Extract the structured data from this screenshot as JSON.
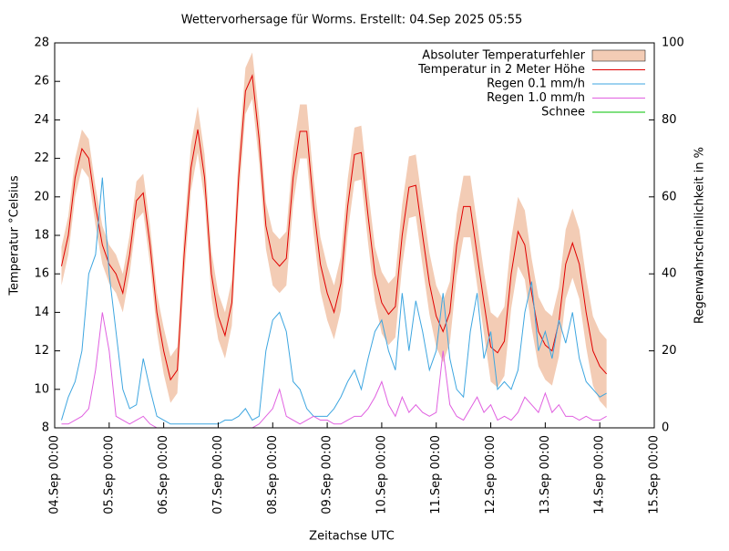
{
  "chart_data": {
    "type": "line",
    "title": "Wettervorhersage für Worms. Erstellt: 04.Sep 2025 05:55",
    "x_label": "Zeitachse UTC",
    "y_label": "Temperatur °Celsius",
    "y2_label": "Regenwahrscheinlichkeit in %",
    "legend": "top-right",
    "x": [
      "04.Sep 03:00",
      "04.Sep 06:00",
      "04.Sep 09:00",
      "04.Sep 12:00",
      "04.Sep 15:00",
      "04.Sep 18:00",
      "04.Sep 21:00",
      "05.Sep 00:00",
      "05.Sep 03:00",
      "05.Sep 06:00",
      "05.Sep 09:00",
      "05.Sep 12:00",
      "05.Sep 15:00",
      "05.Sep 18:00",
      "05.Sep 21:00",
      "06.Sep 00:00",
      "06.Sep 03:00",
      "06.Sep 06:00",
      "06.Sep 09:00",
      "06.Sep 12:00",
      "06.Sep 15:00",
      "06.Sep 18:00",
      "06.Sep 21:00",
      "07.Sep 00:00",
      "07.Sep 03:00",
      "07.Sep 06:00",
      "07.Sep 09:00",
      "07.Sep 12:00",
      "07.Sep 15:00",
      "07.Sep 18:00",
      "07.Sep 21:00",
      "08.Sep 00:00",
      "08.Sep 03:00",
      "08.Sep 06:00",
      "08.Sep 09:00",
      "08.Sep 12:00",
      "08.Sep 15:00",
      "08.Sep 18:00",
      "08.Sep 21:00",
      "09.Sep 00:00",
      "09.Sep 03:00",
      "09.Sep 06:00",
      "09.Sep 09:00",
      "09.Sep 12:00",
      "09.Sep 15:00",
      "09.Sep 18:00",
      "09.Sep 21:00",
      "10.Sep 00:00",
      "10.Sep 03:00",
      "10.Sep 06:00",
      "10.Sep 09:00",
      "10.Sep 12:00",
      "10.Sep 15:00",
      "10.Sep 18:00",
      "10.Sep 21:00",
      "11.Sep 00:00",
      "11.Sep 03:00",
      "11.Sep 06:00",
      "11.Sep 09:00",
      "11.Sep 12:00",
      "11.Sep 15:00",
      "11.Sep 18:00",
      "11.Sep 21:00",
      "12.Sep 00:00",
      "12.Sep 03:00",
      "12.Sep 06:00",
      "12.Sep 09:00",
      "12.Sep 12:00",
      "12.Sep 15:00",
      "12.Sep 18:00",
      "12.Sep 21:00",
      "13.Sep 00:00",
      "13.Sep 03:00",
      "13.Sep 06:00",
      "13.Sep 09:00",
      "13.Sep 12:00",
      "13.Sep 15:00",
      "13.Sep 18:00",
      "13.Sep 21:00",
      "14.Sep 00:00",
      "14.Sep 03:00"
    ],
    "xlim": [
      "04.Sep 00:00",
      "15.Sep 00:00"
    ],
    "xticks": [
      "04.Sep 00:00",
      "05.Sep 00:00",
      "06.Sep 00:00",
      "07.Sep 00:00",
      "08.Sep 00:00",
      "09.Sep 00:00",
      "10.Sep 00:00",
      "11.Sep 00:00",
      "12.Sep 00:00",
      "13.Sep 00:00",
      "14.Sep 00:00",
      "15.Sep 00:00"
    ],
    "ylim": [
      8,
      28
    ],
    "yticks": [
      8,
      10,
      12,
      14,
      16,
      18,
      20,
      22,
      24,
      26,
      28
    ],
    "y2lim": [
      0,
      100
    ],
    "y2ticks": [
      0,
      20,
      40,
      60,
      80,
      100
    ],
    "series": [
      {
        "name": "Absoluter Temperaturfehler",
        "color": "#f3ccb5",
        "style": "band",
        "values": [
          1,
          1,
          1,
          1,
          1,
          1,
          1,
          1,
          1,
          1,
          1,
          1,
          1,
          1,
          1,
          1.2,
          1.2,
          1.2,
          1.2,
          1.2,
          1.2,
          1.2,
          1.2,
          1.2,
          1.2,
          1.2,
          1.2,
          1.2,
          1.2,
          1.2,
          1.2,
          1.4,
          1.4,
          1.4,
          1.4,
          1.4,
          1.4,
          1.4,
          1.4,
          1.4,
          1.4,
          1.4,
          1.4,
          1.4,
          1.4,
          1.4,
          1.4,
          1.6,
          1.6,
          1.6,
          1.6,
          1.6,
          1.6,
          1.6,
          1.6,
          1.6,
          1.6,
          1.6,
          1.6,
          1.6,
          1.6,
          1.6,
          1.6,
          1.8,
          1.8,
          1.8,
          1.8,
          1.8,
          1.8,
          1.8,
          1.8,
          1.8,
          1.8,
          1.8,
          1.8,
          1.8,
          1.8,
          1.8,
          1.8,
          1.8,
          1.8
        ]
      },
      {
        "name": "Temperatur in 2 Meter Höhe",
        "color": "#e00000",
        "values": [
          16.4,
          18.0,
          21.0,
          22.5,
          22.0,
          19.5,
          17.5,
          16.5,
          16.0,
          15.0,
          17.0,
          19.8,
          20.2,
          17.5,
          14.0,
          12.0,
          10.5,
          11.0,
          17.0,
          21.5,
          23.5,
          21.0,
          16.0,
          13.8,
          12.8,
          14.5,
          21.0,
          25.5,
          26.3,
          23.0,
          18.5,
          16.8,
          16.4,
          16.8,
          21.0,
          23.4,
          23.4,
          19.5,
          16.5,
          15.0,
          14.0,
          15.5,
          19.5,
          22.2,
          22.3,
          19.0,
          16.0,
          14.5,
          13.9,
          14.3,
          18.0,
          20.5,
          20.6,
          18.0,
          15.5,
          13.8,
          13.0,
          14.0,
          17.5,
          19.5,
          19.5,
          17.0,
          14.5,
          12.2,
          11.9,
          12.5,
          16.0,
          18.2,
          17.5,
          15.0,
          13.0,
          12.3,
          12.0,
          13.5,
          16.5,
          17.6,
          16.5,
          14.0,
          12.0,
          11.2,
          10.8
        ]
      },
      {
        "name": "Regen 0.1 mm/h",
        "color": "#3ea6e0",
        "axis": "y2",
        "values": [
          2,
          8,
          12,
          20,
          40,
          45,
          65,
          40,
          25,
          10,
          5,
          6,
          18,
          10,
          3,
          2,
          1,
          1,
          1,
          1,
          1,
          1,
          1,
          1,
          2,
          2,
          3,
          5,
          2,
          3,
          20,
          28,
          30,
          25,
          12,
          10,
          5,
          3,
          3,
          3,
          5,
          8,
          12,
          15,
          10,
          18,
          25,
          28,
          20,
          15,
          35,
          20,
          33,
          25,
          15,
          20,
          35,
          18,
          10,
          8,
          25,
          35,
          18,
          25,
          10,
          12,
          10,
          15,
          30,
          38,
          20,
          25,
          18,
          28,
          22,
          30,
          18,
          12,
          10,
          8,
          9
        ]
      },
      {
        "name": "Regen 1.0 mm/h",
        "color": "#e060e0",
        "axis": "y2",
        "values": [
          1,
          1,
          2,
          3,
          5,
          15,
          30,
          20,
          3,
          2,
          1,
          2,
          3,
          1,
          0,
          0,
          0,
          0,
          0,
          0,
          0,
          0,
          0,
          0,
          0,
          0,
          0,
          0,
          0,
          1,
          3,
          5,
          10,
          3,
          2,
          1,
          2,
          3,
          2,
          2,
          1,
          1,
          2,
          3,
          3,
          5,
          8,
          12,
          6,
          3,
          8,
          4,
          6,
          4,
          3,
          4,
          20,
          6,
          3,
          2,
          5,
          8,
          4,
          6,
          2,
          3,
          2,
          4,
          8,
          6,
          4,
          9,
          4,
          6,
          3,
          3,
          2,
          3,
          2,
          2,
          3
        ]
      },
      {
        "name": "Schnee",
        "color": "#00c000",
        "axis": "y2",
        "values": [
          0,
          0,
          0,
          0,
          0,
          0,
          0,
          0,
          0,
          0,
          0,
          0,
          0,
          0,
          0,
          0,
          0,
          0,
          0,
          0,
          0,
          0,
          0,
          0,
          0,
          0,
          0,
          0,
          0,
          0,
          0,
          0,
          0,
          0,
          0,
          0,
          0,
          0,
          0,
          0,
          0,
          0,
          0,
          0,
          0,
          0,
          0,
          0,
          0,
          0,
          0,
          0,
          0,
          0,
          0,
          0,
          0,
          0,
          0,
          0,
          0,
          0,
          0,
          0,
          0,
          0,
          0,
          0,
          0,
          0,
          0,
          0,
          0,
          0,
          0,
          0,
          0,
          0,
          0,
          0,
          0
        ]
      }
    ]
  }
}
